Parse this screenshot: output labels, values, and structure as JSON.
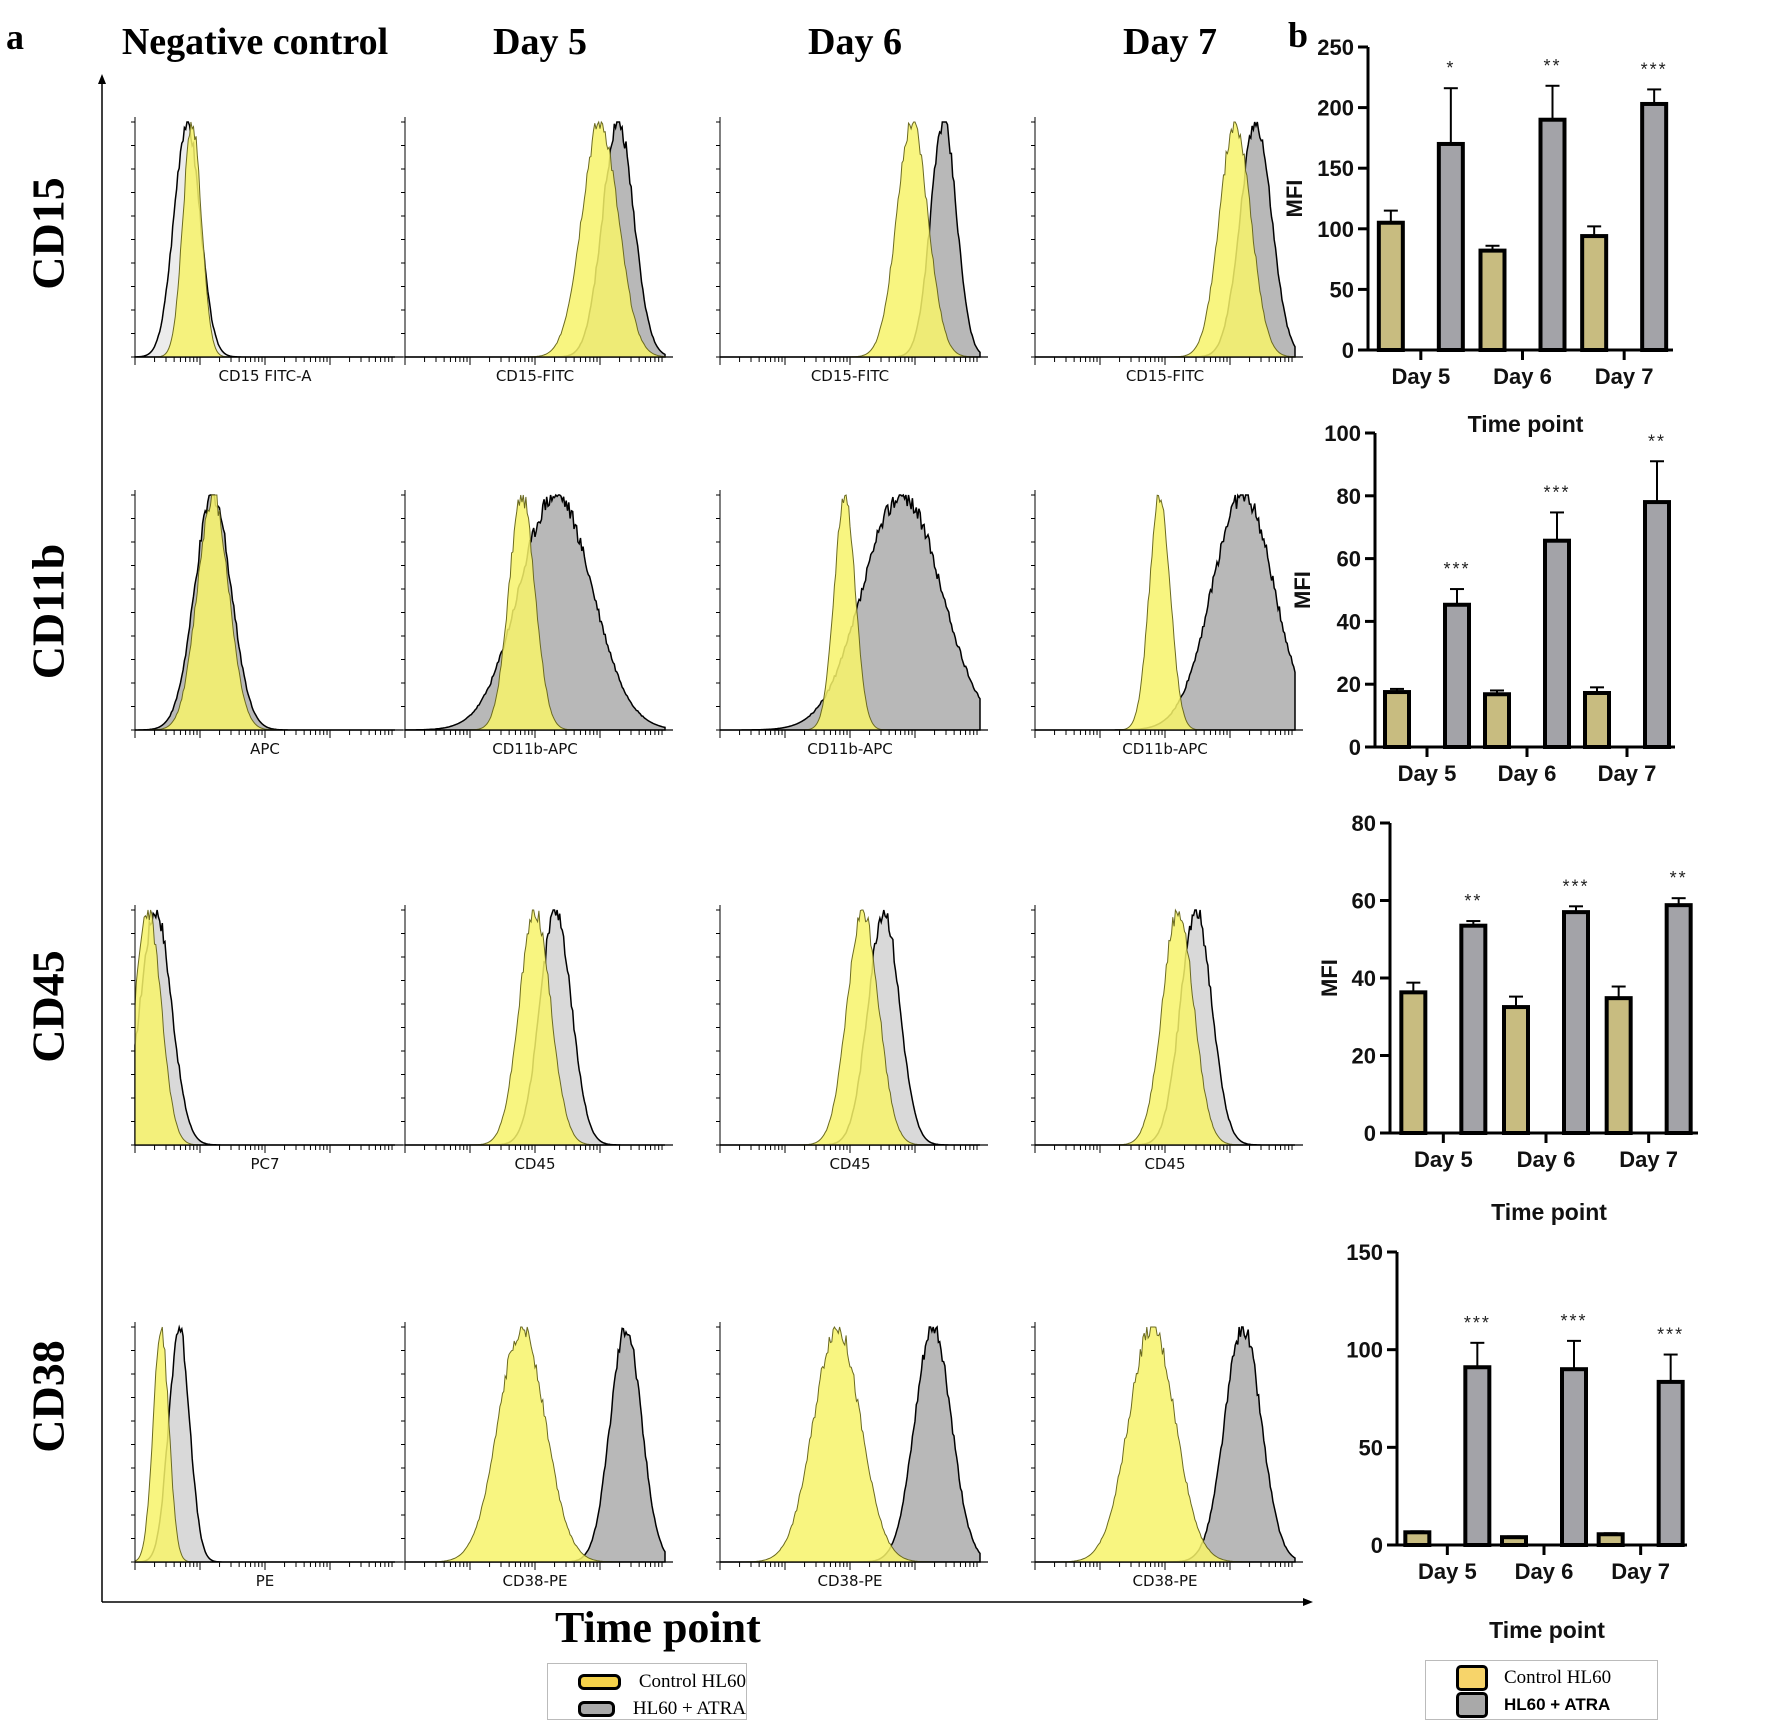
{
  "panel_a": {
    "letter": "a",
    "column_headers": [
      "Negative control",
      "Day 5",
      "Day 6",
      "Day 7"
    ],
    "row_headers": [
      "CD15",
      "CD11b",
      "CD45",
      "CD38"
    ],
    "x_axis_title": "Time point",
    "histogram_axis_labels": [
      [
        "CD15 FITC-A",
        "CD15-FITC",
        "CD15-FITC",
        "CD15-FITC"
      ],
      [
        "APC",
        "CD11b-APC",
        "CD11b-APC",
        "CD11b-APC"
      ],
      [
        "PC7",
        "CD45",
        "CD45",
        "CD45"
      ],
      [
        "PE",
        "CD38-PE",
        "CD38-PE",
        "CD38-PE"
      ]
    ],
    "legend": {
      "items": [
        {
          "label": "Control HL60",
          "color": "#f5d24a"
        },
        {
          "label": "HL60 + ATRA",
          "color": "#a9a9a9"
        }
      ]
    },
    "colors": {
      "control_fill": "#f7f36a",
      "atra_fill": "#b8b8b8",
      "overlap_fill": "#cfc98a"
    }
  },
  "panel_b": {
    "letter": "b",
    "legend": {
      "items": [
        {
          "label": "Control HL60",
          "color": "#f7d46a"
        },
        {
          "label": "HL60 + ATRA",
          "color": "#a9a9a9"
        }
      ]
    }
  },
  "chart_data": [
    {
      "type": "bar",
      "marker": "CD15",
      "title": "",
      "xlabel": "Time point",
      "ylabel": "MFI",
      "categories": [
        "Day 5",
        "Day 6",
        "Day 7"
      ],
      "ylim": [
        0,
        250
      ],
      "yticks": [
        0,
        50,
        100,
        150,
        200,
        250
      ],
      "series": [
        {
          "name": "Control HL60",
          "color": "#c8bc80",
          "values": [
            105,
            82,
            94
          ],
          "errors": [
            10,
            4,
            8
          ]
        },
        {
          "name": "HL60 + ATRA",
          "color": "#a3a3a8",
          "values": [
            170,
            190,
            203
          ],
          "errors": [
            46,
            28,
            12
          ]
        }
      ],
      "significance": [
        "*",
        "**",
        "***"
      ],
      "grid": false
    },
    {
      "type": "bar",
      "marker": "CD11b",
      "title": "",
      "xlabel": "",
      "ylabel": "MFI",
      "categories": [
        "Day 5",
        "Day 6",
        "Day 7"
      ],
      "ylim": [
        0,
        100
      ],
      "yticks": [
        0,
        20,
        40,
        60,
        80,
        100
      ],
      "series": [
        {
          "name": "Control HL60",
          "color": "#c8bc80",
          "values": [
            17.5,
            16.8,
            17.2
          ],
          "errors": [
            1.0,
            1.2,
            1.8
          ]
        },
        {
          "name": "HL60 + ATRA",
          "color": "#a3a3a8",
          "values": [
            45.3,
            65.7,
            78.0
          ],
          "errors": [
            5.0,
            9.0,
            13.0
          ]
        }
      ],
      "significance": [
        "***",
        "***",
        "**"
      ],
      "grid": false
    },
    {
      "type": "bar",
      "marker": "CD45",
      "title": "",
      "xlabel": "Time point",
      "ylabel": "MFI",
      "categories": [
        "Day 5",
        "Day 6",
        "Day 7"
      ],
      "ylim": [
        0,
        80
      ],
      "yticks": [
        0,
        20,
        40,
        60,
        80
      ],
      "series": [
        {
          "name": "Control HL60",
          "color": "#c8bc80",
          "values": [
            36.3,
            32.5,
            34.8
          ],
          "errors": [
            2.5,
            2.7,
            3.0
          ]
        },
        {
          "name": "HL60 + ATRA",
          "color": "#a3a3a8",
          "values": [
            53.5,
            57.0,
            58.8
          ],
          "errors": [
            1.2,
            1.5,
            1.8
          ]
        }
      ],
      "significance": [
        "**",
        "***",
        "**"
      ],
      "grid": false
    },
    {
      "type": "bar",
      "marker": "CD38",
      "title": "",
      "xlabel": "Time point",
      "ylabel": "",
      "categories": [
        "Day 5",
        "Day 6",
        "Day 7"
      ],
      "ylim": [
        0,
        150
      ],
      "yticks": [
        0,
        50,
        100,
        150
      ],
      "series": [
        {
          "name": "Control HL60",
          "color": "#c8bc80",
          "values": [
            6.5,
            4.0,
            5.5
          ],
          "errors": [
            0.5,
            0.4,
            0.5
          ]
        },
        {
          "name": "HL60 + ATRA",
          "color": "#a3a3a8",
          "values": [
            91.0,
            90.0,
            83.5
          ],
          "errors": [
            12.5,
            14.5,
            14.0
          ]
        }
      ],
      "significance": [
        "***",
        "***",
        "***"
      ],
      "grid": false
    }
  ]
}
